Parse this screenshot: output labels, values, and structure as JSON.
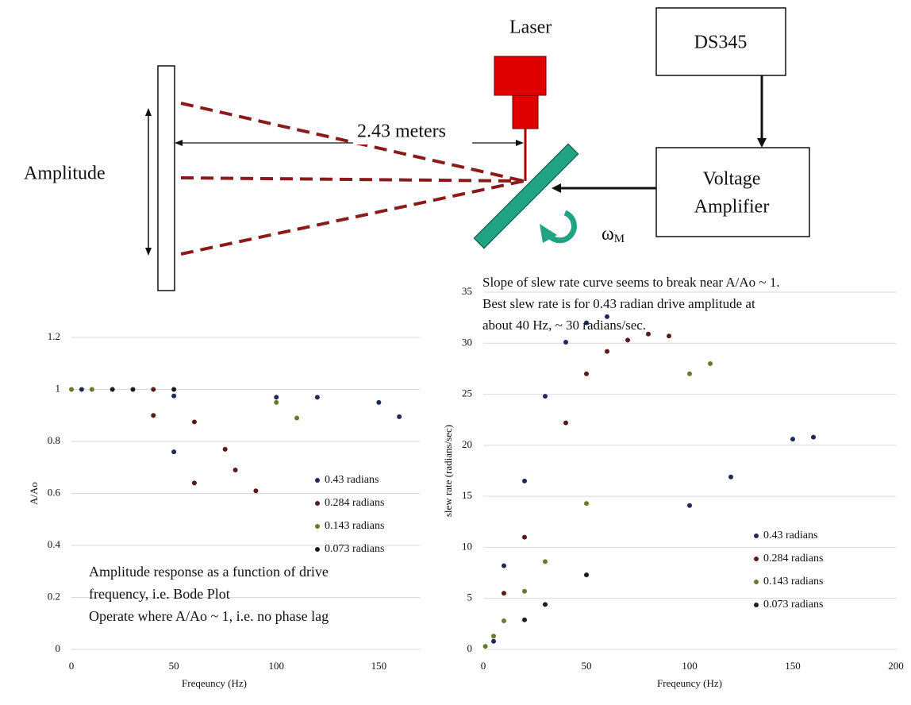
{
  "diagram": {
    "laser_label": "Laser",
    "distance_label": "2.43 meters",
    "amplitude_label": "Amplitude",
    "source_label": "DS345",
    "amplifier_label": [
      "Voltage",
      "Amplifier"
    ],
    "rotation_label": "ω",
    "rotation_subscript": "M"
  },
  "chart_data": [
    {
      "type": "scatter",
      "xlabel": "Freqeuncy  (Hz)",
      "ylabel": "A/Ao",
      "xlim": [
        0,
        170
      ],
      "xticks": [
        0,
        50,
        100,
        150
      ],
      "ylim": [
        0,
        1.2
      ],
      "yticks": [
        0,
        0.2,
        0.4,
        0.6,
        0.8,
        1,
        1.2
      ],
      "grid": true,
      "annotation": [
        "Amplitude  response as a function of drive",
        "frequency, i.e. Bode Plot",
        "Operate where A/Ao ~ 1, i.e. no phase lag"
      ],
      "series": [
        {
          "name": "0.43 radians",
          "color": "#1f2a5a",
          "x": [
            5,
            50,
            50,
            100,
            120,
            150,
            160
          ],
          "values": [
            1,
            0.975,
            0.76,
            0.97,
            0.97,
            0.95,
            0.895
          ]
        },
        {
          "name": "0.284 radians",
          "color": "#5a1a1a",
          "x": [
            40,
            40,
            60,
            60,
            75,
            80,
            90
          ],
          "values": [
            1,
            0.9,
            0.875,
            0.64,
            0.77,
            0.69,
            0.61
          ]
        },
        {
          "name": "0.143 radians",
          "color": "#6b7a2a",
          "x": [
            0,
            10,
            100,
            110
          ],
          "values": [
            1,
            1,
            0.95,
            0.89
          ]
        },
        {
          "name": "0.073 radians",
          "color": "#1a1a2a",
          "x": [
            20,
            30,
            50
          ],
          "values": [
            1,
            1,
            1
          ]
        }
      ]
    },
    {
      "type": "scatter",
      "xlabel": "Freqeuncy  (Hz)",
      "ylabel": "slew rate  (radians/sec)",
      "xlim": [
        0,
        200
      ],
      "xticks": [
        0,
        50,
        100,
        150,
        200
      ],
      "ylim": [
        0,
        35
      ],
      "yticks": [
        0,
        5,
        10,
        15,
        20,
        25,
        30,
        35
      ],
      "grid": true,
      "annotation": [
        "Slope of slew rate curve seems to break near A/Ao ~ 1.",
        "Best slew rate is for 0.43 radian drive amplitude at",
        "about 40 Hz, ~ 30 radians/sec."
      ],
      "series": [
        {
          "name": "0.43 radians",
          "color": "#1f2a5a",
          "x": [
            5,
            10,
            20,
            30,
            40,
            50,
            60,
            100,
            120,
            150,
            160
          ],
          "values": [
            0.8,
            8.2,
            16.5,
            24.8,
            30.1,
            32,
            32.6,
            14.1,
            16.9,
            20.6,
            20.8
          ]
        },
        {
          "name": "0.284 radians",
          "color": "#5a1a1a",
          "x": [
            10,
            20,
            40,
            50,
            60,
            70,
            80,
            90
          ],
          "values": [
            5.5,
            11,
            22.2,
            27,
            29.2,
            30.3,
            30.9,
            30.7
          ]
        },
        {
          "name": "0.143 radians",
          "color": "#6b7a2a",
          "x": [
            1,
            5,
            10,
            20,
            30,
            50,
            100,
            110
          ],
          "values": [
            0.3,
            1.3,
            2.8,
            5.7,
            8.6,
            14.3,
            27,
            28
          ]
        },
        {
          "name": "0.073 radians",
          "color": "#1a1a2a",
          "x": [
            20,
            30,
            50
          ],
          "values": [
            2.9,
            4.4,
            7.3
          ]
        }
      ]
    }
  ]
}
